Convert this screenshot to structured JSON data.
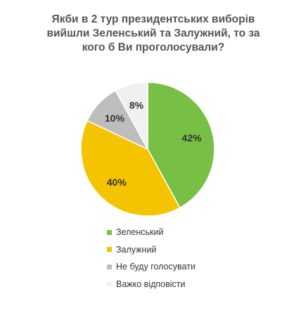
{
  "chart_data": {
    "type": "pie",
    "title_lines": [
      "Якби в 2 тур президентських виборів",
      "вийшли Зеленський та Залужний, то за",
      "кого б Ви проголосували?"
    ],
    "slices": [
      {
        "label": "Зеленський",
        "value": 42,
        "display": "42%",
        "color": "#77c045"
      },
      {
        "label": "Залужний",
        "value": 40,
        "display": "40%",
        "color": "#f5c400"
      },
      {
        "label": "Не буду голосувати",
        "value": 10,
        "display": "10%",
        "color": "#bdbdbd"
      },
      {
        "label": "Важко відповісти",
        "value": 8,
        "display": "8%",
        "color": "#f0f0f0"
      }
    ],
    "legend_position": "bottom"
  }
}
